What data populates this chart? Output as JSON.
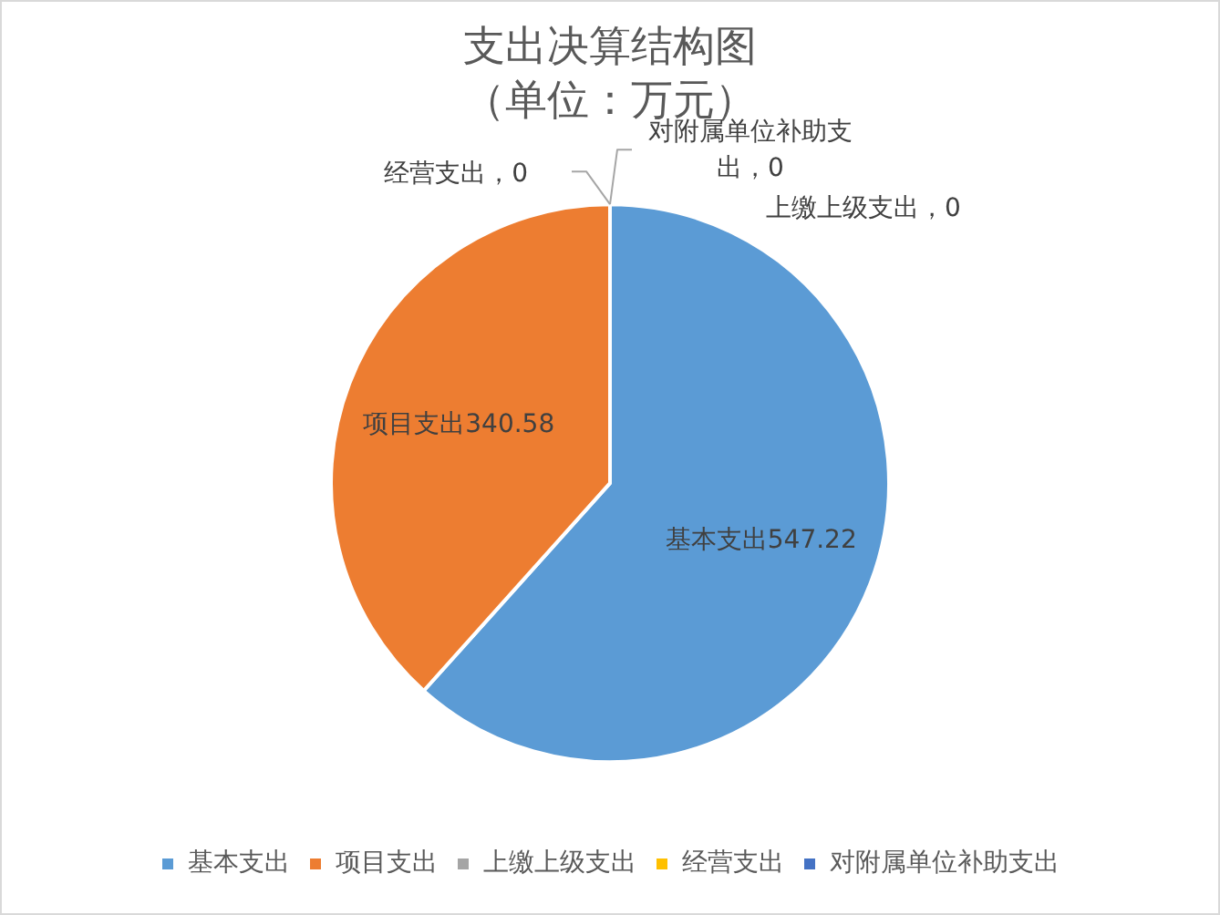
{
  "chart_data": {
    "type": "pie",
    "title": "支出决算结构图",
    "subtitle": "（单位：万元）",
    "categories": [
      "基本支出",
      "项目支出",
      "上缴上级支出",
      "经营支出",
      "对附属单位补助支出"
    ],
    "values": [
      547.22,
      340.58,
      0,
      0,
      0
    ],
    "colors": [
      "#5b9bd5",
      "#ed7d31",
      "#a5a5a5",
      "#ffc000",
      "#4472c4"
    ],
    "value_labels": [
      "基本支出547.22",
      "项目支出340.58",
      "上缴上级支出，0",
      "经营支出，0",
      "对附属单位补助支出，0"
    ],
    "legend": "bottom"
  }
}
